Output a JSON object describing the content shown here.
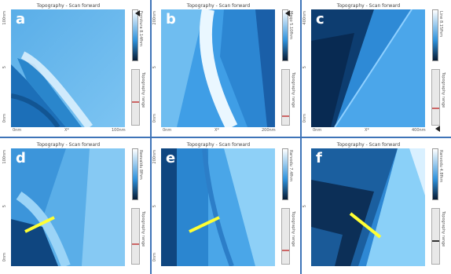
{
  "figure": {
    "panels": [
      {
        "id": "a",
        "title": "Topography - Scan forward",
        "letter": "a",
        "y_top": "100nm",
        "y_mid": "5",
        "y_bot": "0nm",
        "x_left": "0nm",
        "x_mid": "X*",
        "x_right": "100nm",
        "cbar_label": "Fornitura 8.14fhm",
        "slider_label": "Topography range"
      },
      {
        "id": "b",
        "title": "Topography - Scan forward",
        "letter": "b",
        "y_top": "200nm",
        "y_mid": "5",
        "y_bot": "0nm",
        "x_left": "0nm",
        "x_mid": "X*",
        "x_right": "200nm",
        "cbar_label": "Meqo 5.10fhm",
        "slider_label": "Topography range"
      },
      {
        "id": "c",
        "title": "Topography - Scan forward",
        "letter": "c",
        "y_top": "400nm",
        "y_mid": "5",
        "y_bot": "0nm",
        "x_left": "0nm",
        "x_mid": "X*",
        "x_right": "400nm",
        "cbar_label": "Line 8.15fhm",
        "slider_label": "Topography range"
      },
      {
        "id": "d",
        "title": "Topography - Scan forward",
        "letter": "d",
        "y_top": "100nm",
        "y_mid": "5",
        "y_bot": "0nm",
        "x_left": "",
        "x_mid": "",
        "x_right": "",
        "cbar_label": "Reevaldu 8fhm",
        "slider_label": "Topography range"
      },
      {
        "id": "e",
        "title": "Topography - Scan forward",
        "letter": "e",
        "y_top": "200nm",
        "y_mid": "5",
        "y_bot": "0nm",
        "x_left": "",
        "x_mid": "",
        "x_right": "",
        "cbar_label": "Rarvodu 7.4fhm",
        "slider_label": "Topography range"
      },
      {
        "id": "f",
        "title": "Topography - Scan forward",
        "letter": "f",
        "y_top": "",
        "y_mid": "5",
        "y_bot": "",
        "x_left": "",
        "x_mid": "",
        "x_right": "",
        "cbar_label": "Ranvodu 4.8fhm",
        "slider_label": "Topography range"
      }
    ],
    "colors": {
      "divider": "#3f74b8",
      "highlight_line": "#ffff33"
    }
  }
}
